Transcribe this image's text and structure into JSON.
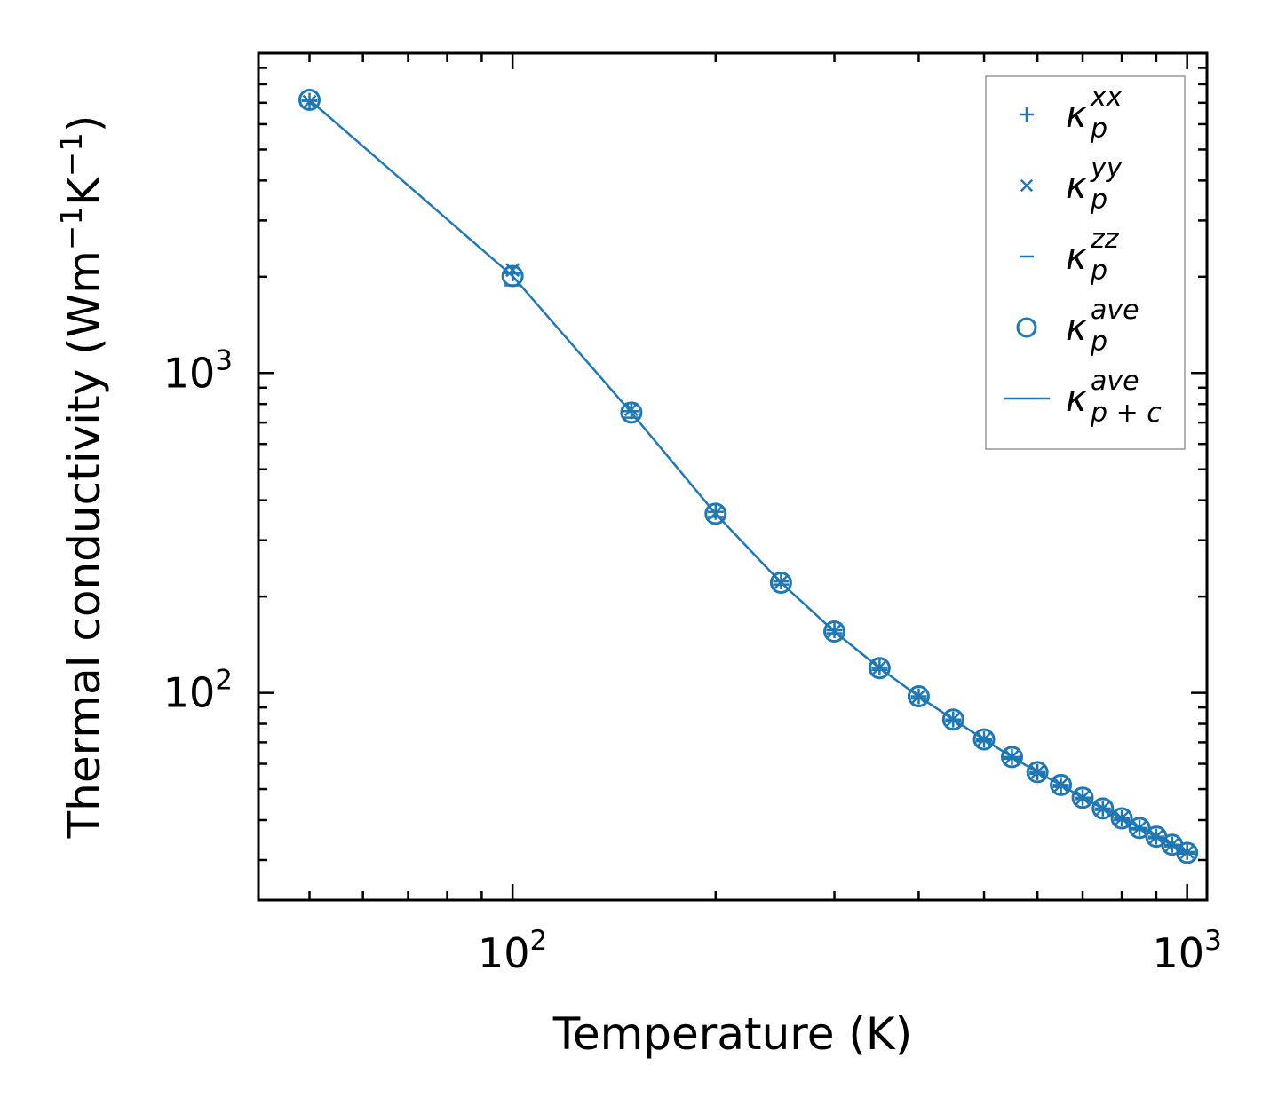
{
  "chart_data": {
    "type": "line",
    "xscale": "log",
    "yscale": "log",
    "xlabel": "Temperature (K)",
    "ylabel_base": "Thermal conductivity (Wm",
    "ylabel_exp1": "−1",
    "ylabel_mid": "K",
    "ylabel_exp2": "−1",
    "ylabel_end": ")",
    "xlim": [
      42,
      1070
    ],
    "ylim": [
      22.5,
      10000
    ],
    "x_major_ticks": [
      {
        "value": 100,
        "base": "10",
        "exp": "2"
      },
      {
        "value": 1000,
        "base": "10",
        "exp": "3"
      }
    ],
    "y_major_ticks": [
      {
        "value": 100,
        "base": "10",
        "exp": "2"
      },
      {
        "value": 1000,
        "base": "10",
        "exp": "3"
      }
    ],
    "color": "#1f77b4",
    "x": [
      50,
      100,
      150,
      200,
      250,
      300,
      350,
      400,
      450,
      500,
      550,
      600,
      650,
      700,
      750,
      800,
      850,
      900,
      950,
      1000
    ],
    "series": [
      {
        "name": "kappa_p_xx",
        "marker": "+",
        "values": [
          7100,
          2050,
          760,
          368,
          223,
          157,
          120,
          97.5,
          82.5,
          71.5,
          63,
          56.5,
          51.5,
          47,
          43.5,
          40.5,
          37.8,
          35.5,
          33.5,
          31.8
        ]
      },
      {
        "name": "kappa_p_yy",
        "marker": "x",
        "values": [
          7050,
          2100,
          770,
          365,
          222,
          156,
          120,
          97.5,
          82.5,
          71.5,
          63,
          56.5,
          51.5,
          47,
          43.5,
          40.5,
          37.8,
          35.5,
          33.5,
          31.8
        ]
      },
      {
        "name": "kappa_p_zz",
        "marker": "_",
        "values": [
          7150,
          1880,
          725,
          355,
          218,
          153.5,
          118,
          96,
          81.5,
          70.5,
          62.2,
          55.8,
          50.8,
          46.5,
          43,
          40,
          37.4,
          35.1,
          33.1,
          31.4
        ]
      },
      {
        "name": "kappa_p_ave",
        "marker": "o",
        "values": [
          7150,
          2010,
          752,
          363,
          221,
          155.5,
          119.5,
          97.5,
          82.5,
          71.5,
          63,
          56.5,
          51.5,
          47,
          43.5,
          40.5,
          37.8,
          35.5,
          33.5,
          31.6
        ]
      },
      {
        "name": "kappa_pc_ave",
        "marker": "line",
        "values": [
          7150,
          2010,
          752,
          363,
          221,
          155.5,
          119.5,
          97.5,
          82.5,
          71.5,
          63,
          56.5,
          51.5,
          47,
          43.5,
          40.5,
          37.8,
          35.5,
          33.5,
          31.6
        ]
      }
    ],
    "legend": {
      "position": "top-right",
      "entries": [
        {
          "marker": "+",
          "symbol": "κ",
          "sub": "p",
          "sup": "xx"
        },
        {
          "marker": "x",
          "symbol": "κ",
          "sub": "p",
          "sup": "yy"
        },
        {
          "marker": "_",
          "symbol": "κ",
          "sub": "p",
          "sup": "zz"
        },
        {
          "marker": "o",
          "symbol": "κ",
          "sub": "p",
          "sup": "ave"
        },
        {
          "marker": "line",
          "symbol": "κ",
          "sub": "p + c",
          "sup": "ave"
        }
      ]
    }
  }
}
